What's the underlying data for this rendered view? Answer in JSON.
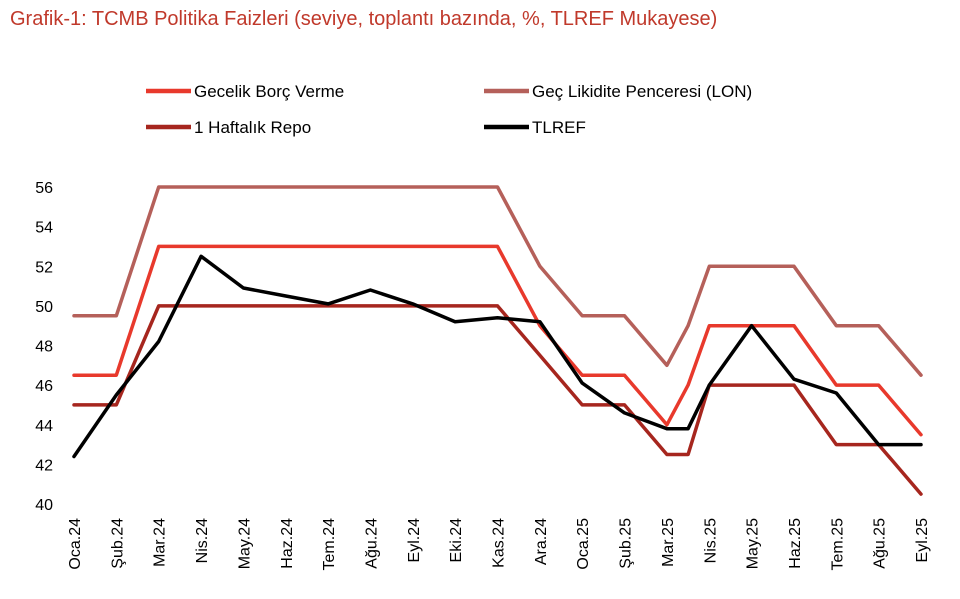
{
  "title": "Grafik-1: TCMB Politika Faizleri (seviye, toplantı bazında, %, TLREF Mukayese)",
  "chart_data": {
    "type": "line",
    "title": "Grafik-1: TCMB Politika Faizleri (seviye, toplantı bazında, %, TLREF Mukayese)",
    "xlabel": "",
    "ylabel": "",
    "ylim": [
      40,
      56
    ],
    "yticks": [
      40,
      42,
      44,
      46,
      48,
      50,
      52,
      54,
      56
    ],
    "grid": false,
    "legend_position": "top",
    "categories": [
      "Oca.24",
      "Şub.24",
      "Mar.24",
      "Nis.24",
      "May.24",
      "Haz.24",
      "Tem.24",
      "Ağu.24",
      "Eyl.24",
      "Eki.24",
      "Kas.24",
      "Ara.24",
      "Oca.25",
      "Şub.25",
      "Mar.25",
      "Nis.25",
      "May.25",
      "Haz.25",
      "Tem.25",
      "Ağu.25",
      "Eyl.25"
    ],
    "series": [
      {
        "name": "Gecelik Borç Verme",
        "color": "#e8392c",
        "steps": [
          [
            0,
            46.5
          ],
          [
            1,
            46.5
          ],
          [
            2,
            53
          ],
          [
            3,
            53
          ],
          [
            4,
            53
          ],
          [
            5,
            53
          ],
          [
            6,
            53
          ],
          [
            7,
            53
          ],
          [
            8,
            53
          ],
          [
            9,
            53
          ],
          [
            10,
            53
          ],
          [
            11,
            49
          ],
          [
            12,
            46.5
          ],
          [
            13,
            46.5
          ],
          [
            14,
            44
          ],
          [
            14.5,
            46
          ],
          [
            15,
            49
          ],
          [
            16,
            49
          ],
          [
            17,
            49
          ],
          [
            18,
            46
          ],
          [
            19,
            46
          ],
          [
            20,
            43.5
          ]
        ]
      },
      {
        "name": "Geç Likidite Penceresi (LON)",
        "color": "#b5605a",
        "steps": [
          [
            0,
            49.5
          ],
          [
            1,
            49.5
          ],
          [
            2,
            56
          ],
          [
            3,
            56
          ],
          [
            4,
            56
          ],
          [
            5,
            56
          ],
          [
            6,
            56
          ],
          [
            7,
            56
          ],
          [
            8,
            56
          ],
          [
            9,
            56
          ],
          [
            10,
            56
          ],
          [
            11,
            52
          ],
          [
            12,
            49.5
          ],
          [
            13,
            49.5
          ],
          [
            14,
            47
          ],
          [
            14.5,
            49
          ],
          [
            15,
            52
          ],
          [
            16,
            52
          ],
          [
            17,
            52
          ],
          [
            18,
            49
          ],
          [
            19,
            49
          ],
          [
            20,
            46.5
          ]
        ]
      },
      {
        "name": "1 Haftalık Repo",
        "color": "#a6261e",
        "steps": [
          [
            0,
            45
          ],
          [
            1,
            45
          ],
          [
            2,
            50
          ],
          [
            3,
            50
          ],
          [
            4,
            50
          ],
          [
            5,
            50
          ],
          [
            6,
            50
          ],
          [
            7,
            50
          ],
          [
            8,
            50
          ],
          [
            9,
            50
          ],
          [
            10,
            50
          ],
          [
            11,
            47.5
          ],
          [
            12,
            45
          ],
          [
            13,
            45
          ],
          [
            14,
            42.5
          ],
          [
            14.5,
            42.5
          ],
          [
            15,
            46
          ],
          [
            16,
            46
          ],
          [
            17,
            46
          ],
          [
            18,
            43
          ],
          [
            19,
            43
          ],
          [
            20,
            40.5
          ]
        ]
      },
      {
        "name": "TLREF",
        "color": "#000000",
        "steps": [
          [
            0,
            42.4
          ],
          [
            1,
            45.5
          ],
          [
            2,
            48.2
          ],
          [
            3,
            52.5
          ],
          [
            4,
            50.9
          ],
          [
            5,
            50.5
          ],
          [
            6,
            50.1
          ],
          [
            7,
            50.8
          ],
          [
            8,
            50.1
          ],
          [
            9,
            49.2
          ],
          [
            10,
            49.4
          ],
          [
            11,
            49.2
          ],
          [
            12,
            46.1
          ],
          [
            13,
            44.6
          ],
          [
            14,
            43.8
          ],
          [
            14.5,
            43.8
          ],
          [
            15,
            46
          ],
          [
            16,
            49
          ],
          [
            17,
            46.3
          ],
          [
            18,
            45.6
          ],
          [
            19,
            43
          ],
          [
            20,
            43
          ]
        ]
      }
    ]
  }
}
